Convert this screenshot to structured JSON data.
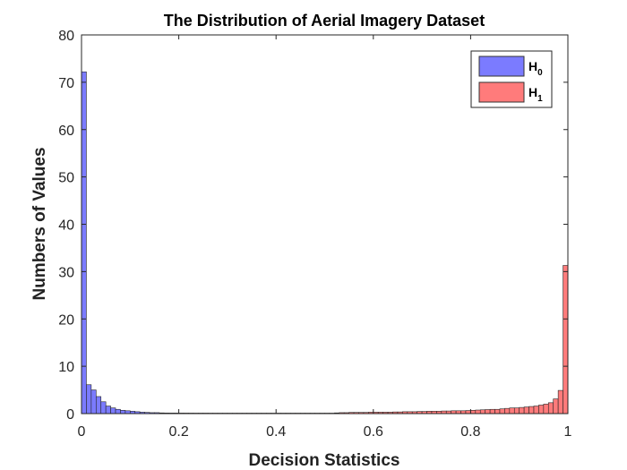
{
  "chart_data": {
    "type": "bar",
    "title": "The Distribution of Aerial Imagery Dataset",
    "xlabel": "Decision Statistics",
    "ylabel": "Numbers of Values",
    "xlim": [
      0,
      1
    ],
    "ylim": [
      0,
      80
    ],
    "xticks": [
      0,
      0.2,
      0.4,
      0.6,
      0.8,
      1
    ],
    "xtick_labels": [
      "0",
      "0.2",
      "0.4",
      "0.6",
      "0.8",
      "1"
    ],
    "yticks": [
      0,
      10,
      20,
      30,
      40,
      50,
      60,
      70,
      80
    ],
    "ytick_labels": [
      "0",
      "10",
      "20",
      "30",
      "40",
      "50",
      "60",
      "70",
      "80"
    ],
    "grid": false,
    "legend_position": "top-right",
    "bin_width": 0.01,
    "series": [
      {
        "name": "H",
        "name_sub": "0",
        "color": "#7b7bff",
        "bin_start": 0,
        "values": [
          72.2,
          6.1,
          5.0,
          3.6,
          2.5,
          1.6,
          1.2,
          0.9,
          0.7,
          0.6,
          0.5,
          0.4,
          0.3,
          0.25,
          0.2,
          0.2,
          0.15,
          0.12,
          0.1,
          0.1,
          0.08,
          0.07,
          0.06,
          0.05,
          0.05,
          0.05,
          0.04,
          0.04,
          0.03,
          0.03,
          0.03,
          0.03,
          0.02,
          0.02,
          0.02,
          0.02,
          0.02,
          0.02,
          0.02,
          0.02,
          0.02,
          0.02,
          0.02,
          0.02,
          0.02,
          0.02,
          0.02,
          0.02,
          0.02,
          0.02
        ]
      },
      {
        "name": "H",
        "name_sub": "1",
        "color": "#ff7b7b",
        "bin_start": 0,
        "values": [
          0.6,
          0.6,
          0.6,
          0.5,
          0.5,
          0.45,
          0.4,
          0.35,
          0.3,
          0.25,
          0.2,
          0.2,
          0.15,
          0.1,
          0.1,
          0.1,
          0.1,
          0.1,
          0.1,
          0.1,
          0.1,
          0.1,
          0.1,
          0.1,
          0.1,
          0.1,
          0.1,
          0.1,
          0.1,
          0.1,
          0.1,
          0.1,
          0.1,
          0.1,
          0.1,
          0.1,
          0.1,
          0.1,
          0.1,
          0.1,
          0.1,
          0.1,
          0.1,
          0.1,
          0.1,
          0.1,
          0.1,
          0.1,
          0.1,
          0.1,
          0.1,
          0.1,
          0.15,
          0.2,
          0.2,
          0.25,
          0.25,
          0.25,
          0.25,
          0.3,
          0.3,
          0.3,
          0.3,
          0.3,
          0.35,
          0.35,
          0.4,
          0.4,
          0.4,
          0.45,
          0.45,
          0.5,
          0.5,
          0.5,
          0.55,
          0.55,
          0.6,
          0.6,
          0.6,
          0.65,
          0.7,
          0.75,
          0.8,
          0.85,
          0.9,
          0.9,
          1.0,
          1.1,
          1.2,
          1.2,
          1.3,
          1.4,
          1.5,
          1.6,
          1.8,
          2.0,
          2.3,
          3.1,
          4.9,
          31.3
        ]
      }
    ]
  }
}
